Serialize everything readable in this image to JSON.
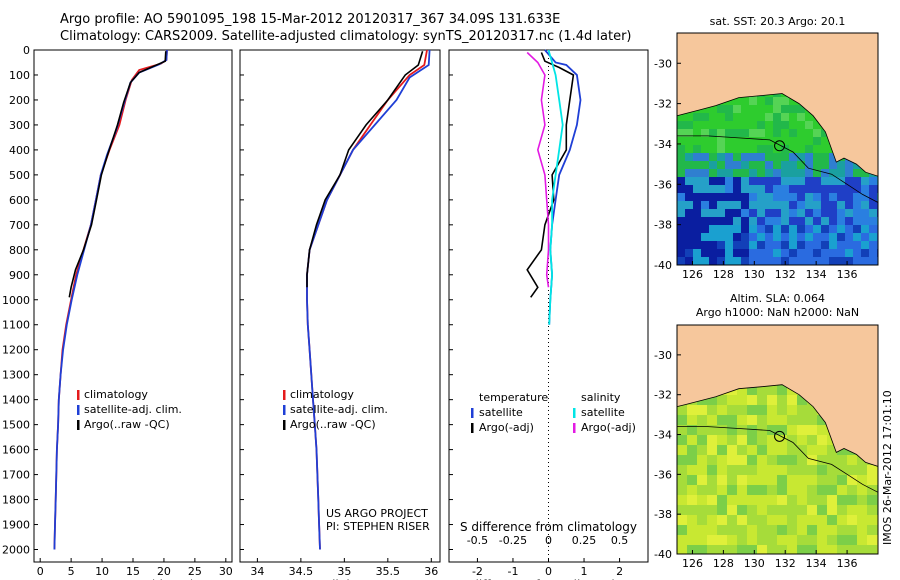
{
  "header": {
    "line1": "Argo profile: AO 5901095_198 15-Mar-2012 20120317_367 34.09S 131.633E",
    "line2": "Climatology: CARS2009. Satellite-adjusted climatology: synTS_20120317.nc (1.4d later)"
  },
  "side_note": "IMOS 26-Mar-2012 17:01:10",
  "colors": {
    "climatology": "#e41a1c",
    "satellite": "#1f3fd6",
    "argo": "#000000",
    "sal_satellite": "#00e5e5",
    "sal_argo": "#e31ae3",
    "land": "#f6c79c"
  },
  "chart_data": [
    {
      "type": "line",
      "id": "temperature",
      "xlabel": "temperature (deg C)",
      "xlim": [
        -1,
        31
      ],
      "ylim": [
        0,
        2050
      ],
      "xticks": [
        "0",
        "5",
        "10",
        "15",
        "20",
        "25",
        "30"
      ],
      "xtick_values": [
        0,
        5,
        10,
        15,
        20,
        25,
        30
      ],
      "yticks": [
        0,
        100,
        200,
        300,
        400,
        500,
        600,
        700,
        800,
        900,
        1000,
        1100,
        1200,
        1300,
        1400,
        1500,
        1600,
        1700,
        1800,
        1900,
        2000
      ],
      "legend": [
        "climatology",
        "satellite-adj. clim.",
        "Argo(..raw -QC)"
      ],
      "series": [
        {
          "name": "climatology",
          "color": "#e41a1c",
          "points": [
            [
              20.5,
              0
            ],
            [
              20.4,
              40
            ],
            [
              19.5,
              55
            ],
            [
              16,
              80
            ],
            [
              14.8,
              120
            ],
            [
              13.8,
              200
            ],
            [
              12.8,
              300
            ],
            [
              11.2,
              400
            ],
            [
              9.8,
              500
            ],
            [
              9.0,
              600
            ],
            [
              8.2,
              700
            ],
            [
              7.0,
              800
            ],
            [
              5.8,
              900
            ],
            [
              5.0,
              1000
            ],
            [
              4.2,
              1100
            ],
            [
              3.6,
              1200
            ],
            [
              3.3,
              1300
            ],
            [
              3.0,
              1400
            ],
            [
              2.9,
              1500
            ],
            [
              2.7,
              1600
            ],
            [
              2.6,
              1700
            ],
            [
              2.5,
              1800
            ],
            [
              2.4,
              1900
            ],
            [
              2.3,
              2000
            ]
          ]
        },
        {
          "name": "satellite-adj. clim.",
          "color": "#1f3fd6",
          "points": [
            [
              20.5,
              0
            ],
            [
              20.4,
              40
            ],
            [
              19.2,
              58
            ],
            [
              16,
              90
            ],
            [
              14.6,
              130
            ],
            [
              13.6,
              210
            ],
            [
              12.3,
              320
            ],
            [
              10.8,
              420
            ],
            [
              9.8,
              500
            ],
            [
              9.0,
              600
            ],
            [
              8.2,
              700
            ],
            [
              7.1,
              800
            ],
            [
              6.0,
              900
            ],
            [
              5.1,
              1000
            ],
            [
              4.3,
              1100
            ],
            [
              3.7,
              1200
            ],
            [
              3.3,
              1300
            ],
            [
              3.0,
              1400
            ],
            [
              2.9,
              1500
            ],
            [
              2.7,
              1600
            ],
            [
              2.6,
              1700
            ],
            [
              2.5,
              1800
            ],
            [
              2.4,
              1900
            ],
            [
              2.3,
              2000
            ]
          ]
        },
        {
          "name": "Argo(..raw -QC)",
          "color": "#000000",
          "points": [
            [
              20.3,
              5
            ],
            [
              20.2,
              45
            ],
            [
              18.8,
              60
            ],
            [
              16,
              90
            ],
            [
              14.6,
              130
            ],
            [
              13.5,
              210
            ],
            [
              12.5,
              300
            ],
            [
              10.9,
              420
            ],
            [
              9.9,
              500
            ],
            [
              9.1,
              600
            ],
            [
              8.3,
              700
            ],
            [
              7.0,
              800
            ],
            [
              5.7,
              880
            ],
            [
              5.0,
              950
            ],
            [
              4.7,
              990
            ]
          ]
        }
      ],
      "annotations": []
    },
    {
      "type": "line",
      "id": "salinity",
      "xlabel": "salinity",
      "xlim": [
        33.8,
        36.1
      ],
      "ylim": [
        0,
        2050
      ],
      "xticks": [
        "34",
        "34.5",
        "35",
        "35.5",
        "36"
      ],
      "xtick_values": [
        34,
        34.5,
        35,
        35.5,
        36
      ],
      "legend": [
        "climatology",
        "satellite-adj. clim.",
        "Argo(..raw -QC)"
      ],
      "series": [
        {
          "name": "climatology",
          "color": "#e41a1c",
          "points": [
            [
              35.95,
              0
            ],
            [
              35.92,
              60
            ],
            [
              35.75,
              100
            ],
            [
              35.5,
              200
            ],
            [
              35.3,
              300
            ],
            [
              35.1,
              400
            ],
            [
              34.95,
              500
            ],
            [
              34.8,
              600
            ],
            [
              34.7,
              700
            ],
            [
              34.6,
              800
            ],
            [
              34.57,
              900
            ],
            [
              34.57,
              1000
            ],
            [
              34.58,
              1100
            ],
            [
              34.6,
              1200
            ],
            [
              34.62,
              1300
            ],
            [
              34.64,
              1400
            ],
            [
              34.66,
              1500
            ],
            [
              34.68,
              1600
            ],
            [
              34.69,
              1700
            ],
            [
              34.7,
              1800
            ],
            [
              34.71,
              1900
            ],
            [
              34.72,
              2000
            ]
          ]
        },
        {
          "name": "satellite-adj. clim.",
          "color": "#1f3fd6",
          "points": [
            [
              35.98,
              0
            ],
            [
              35.97,
              60
            ],
            [
              35.75,
              110
            ],
            [
              35.6,
              200
            ],
            [
              35.35,
              300
            ],
            [
              35.1,
              400
            ],
            [
              34.95,
              500
            ],
            [
              34.8,
              600
            ],
            [
              34.7,
              700
            ],
            [
              34.6,
              800
            ],
            [
              34.57,
              900
            ],
            [
              34.57,
              1000
            ],
            [
              34.58,
              1100
            ],
            [
              34.6,
              1200
            ],
            [
              34.62,
              1300
            ],
            [
              34.64,
              1400
            ],
            [
              34.66,
              1500
            ],
            [
              34.68,
              1600
            ],
            [
              34.69,
              1700
            ],
            [
              34.7,
              1800
            ],
            [
              34.71,
              1900
            ],
            [
              34.72,
              2000
            ]
          ]
        },
        {
          "name": "Argo(..raw -QC)",
          "color": "#000000",
          "points": [
            [
              35.9,
              5
            ],
            [
              35.85,
              60
            ],
            [
              35.7,
              100
            ],
            [
              35.5,
              200
            ],
            [
              35.25,
              300
            ],
            [
              35.05,
              400
            ],
            [
              34.95,
              500
            ],
            [
              34.78,
              600
            ],
            [
              34.68,
              700
            ],
            [
              34.6,
              800
            ],
            [
              34.57,
              900
            ],
            [
              34.57,
              950
            ]
          ]
        }
      ],
      "annotations": [
        "US ARGO PROJECT",
        "PI: STEPHEN RISER"
      ]
    },
    {
      "type": "line",
      "id": "difference",
      "xlabel": "T difference from climatology",
      "xlabel_top": "S difference from climatology",
      "xlim": [
        -2.8,
        2.8
      ],
      "ylim": [
        0,
        2050
      ],
      "xticks": [
        "-2",
        "-1",
        "0",
        "1",
        "2"
      ],
      "xtick_values": [
        -2,
        -1,
        0,
        1,
        2
      ],
      "xticks_s": [
        "-0.5",
        "-0.25",
        "0",
        "0.25",
        "0.5"
      ],
      "xtick_values_s": [
        -0.5,
        -0.25,
        0,
        0.25,
        0.5
      ],
      "legend_temperature": [
        "temperature",
        "satellite",
        "Argo(-adj)"
      ],
      "legend_salinity": [
        "salinity",
        "satellite",
        "Argo(-adj)"
      ],
      "series": [
        {
          "name": "T satellite",
          "color": "#1f3fd6",
          "points": [
            [
              -0.1,
              0
            ],
            [
              0.2,
              50
            ],
            [
              0.5,
              60
            ],
            [
              0.8,
              100
            ],
            [
              0.9,
              200
            ],
            [
              0.8,
              300
            ],
            [
              0.6,
              400
            ],
            [
              0.3,
              500
            ],
            [
              0.2,
              600
            ],
            [
              0.1,
              700
            ],
            [
              0.05,
              800
            ],
            [
              0.1,
              900
            ],
            [
              0.05,
              1000
            ],
            [
              0.02,
              1100
            ]
          ]
        },
        {
          "name": "T Argo(-adj)",
          "color": "#000000",
          "points": [
            [
              -0.2,
              10
            ],
            [
              -0.1,
              45
            ],
            [
              0.3,
              70
            ],
            [
              0.7,
              100
            ],
            [
              0.6,
              200
            ],
            [
              0.5,
              300
            ],
            [
              0.5,
              400
            ],
            [
              0.1,
              500
            ],
            [
              0.15,
              600
            ],
            [
              -0.1,
              700
            ],
            [
              -0.2,
              800
            ],
            [
              -0.6,
              880
            ],
            [
              -0.3,
              950
            ],
            [
              -0.5,
              990
            ]
          ]
        },
        {
          "name": "S satellite",
          "color": "#00e5e5",
          "points": [
            [
              0.0,
              0
            ],
            [
              0.1,
              50
            ],
            [
              0.2,
              100
            ],
            [
              0.3,
              200
            ],
            [
              0.4,
              300
            ],
            [
              0.3,
              400
            ],
            [
              0.2,
              500
            ],
            [
              0.1,
              600
            ],
            [
              0.1,
              700
            ],
            [
              0.05,
              800
            ],
            [
              0.1,
              900
            ],
            [
              0.05,
              1000
            ],
            [
              0.02,
              1100
            ]
          ]
        },
        {
          "name": "S Argo(-adj)",
          "color": "#e31ae3",
          "points": [
            [
              -0.6,
              10
            ],
            [
              -0.3,
              50
            ],
            [
              -0.1,
              100
            ],
            [
              -0.2,
              200
            ],
            [
              -0.1,
              300
            ],
            [
              -0.3,
              400
            ],
            [
              -0.1,
              500
            ],
            [
              -0.05,
              600
            ],
            [
              0.0,
              700
            ],
            [
              0.0,
              800
            ],
            [
              -0.05,
              900
            ],
            [
              0.0,
              950
            ]
          ]
        }
      ]
    },
    {
      "type": "heatmap",
      "id": "sst_map",
      "title": "sat. SST: 20.3  Argo: 20.1",
      "xticks": [
        "126",
        "128",
        "130",
        "132",
        "134",
        "136"
      ],
      "yticks": [
        "-30",
        "-32",
        "-34",
        "-36",
        "-38",
        "-40"
      ],
      "xlim": [
        125,
        138
      ],
      "ylim": [
        -40,
        -28.5
      ],
      "marker": [
        131.633,
        -34.09
      ]
    },
    {
      "type": "heatmap",
      "id": "sla_map",
      "title": "Altim. SLA: 0.064",
      "subtitle": "Argo h1000: NaN  h2000: NaN",
      "xticks": [
        "126",
        "128",
        "130",
        "132",
        "134",
        "136"
      ],
      "yticks": [
        "-30",
        "-32",
        "-34",
        "-36",
        "-38",
        "-40"
      ],
      "xlim": [
        125,
        138
      ],
      "ylim": [
        -40,
        -28.5
      ],
      "marker": [
        131.633,
        -34.09
      ]
    }
  ]
}
